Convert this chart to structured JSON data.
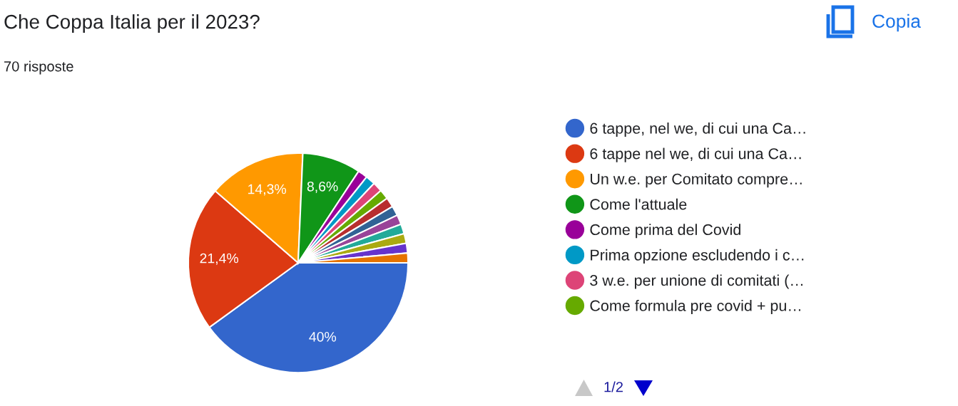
{
  "chart_data": {
    "type": "pie",
    "title": "Che Coppa Italia per il 2023?",
    "subtitle": "70 risposte",
    "categories": [
      "6 tappe, nel we, di cui una Ca…",
      "6 tappe nel we, di cui una Ca…",
      "Un w.e. per Comitato compre…",
      "Come l'attuale",
      "Come prima del Covid",
      "Prima opzione escludendo i c…",
      "3 w.e. per unione di comitati (…",
      "Come formula pre covid + pu…",
      null,
      null,
      null,
      null,
      null,
      null,
      null
    ],
    "values": [
      40,
      21.4,
      14.3,
      8.6,
      1.43,
      1.43,
      1.43,
      1.43,
      1.43,
      1.43,
      1.43,
      1.43,
      1.43,
      1.43,
      1.43
    ],
    "colors": [
      "#3366cc",
      "#dc3912",
      "#ff9900",
      "#109618",
      "#990099",
      "#0099c6",
      "#dd4477",
      "#66aa00",
      "#b82e2e",
      "#316395",
      "#994499",
      "#22aa99",
      "#aaaa11",
      "#6633cc",
      "#e67300"
    ],
    "value_labels": [
      "40%",
      "21,4%",
      "14,3%",
      "8,6%",
      null,
      null,
      null,
      null,
      null,
      null,
      null,
      null,
      null,
      null,
      null
    ],
    "legend": "right",
    "annotations": [
      "Copia",
      "1/2"
    ]
  }
}
